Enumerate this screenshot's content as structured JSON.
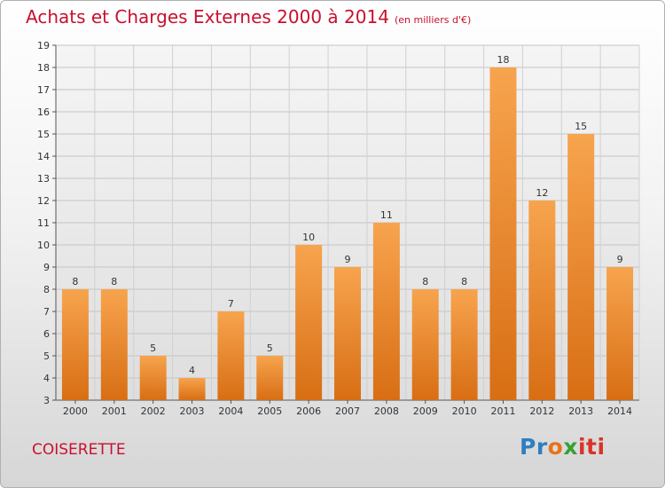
{
  "title": "Achats et Charges Externes 2000 à 2014",
  "subtitle": "(en milliers d'€)",
  "place": "COISERETTE",
  "logo": {
    "p1": "Pr",
    "p2": "o",
    "p3": "x",
    "p4": "iti"
  },
  "colors": {
    "bar_top": "#f7a44e",
    "bar_bottom": "#d86e14",
    "title": "#c8102e"
  },
  "chart_data": {
    "type": "bar",
    "title": "Achats et Charges Externes 2000 à 2014",
    "subtitle": "(en milliers d'€)",
    "categories": [
      "2000",
      "2001",
      "2002",
      "2003",
      "2004",
      "2005",
      "2006",
      "2007",
      "2008",
      "2009",
      "2010",
      "2011",
      "2012",
      "2013",
      "2014"
    ],
    "values": [
      8,
      8,
      5,
      4,
      7,
      5,
      10,
      9,
      11,
      8,
      8,
      18,
      12,
      15,
      9
    ],
    "yticks": [
      3,
      4,
      5,
      6,
      7,
      8,
      9,
      10,
      11,
      12,
      13,
      14,
      15,
      16,
      17,
      18,
      19
    ],
    "ylim": [
      3,
      19
    ],
    "grid": true,
    "xlabel": "",
    "ylabel": ""
  }
}
